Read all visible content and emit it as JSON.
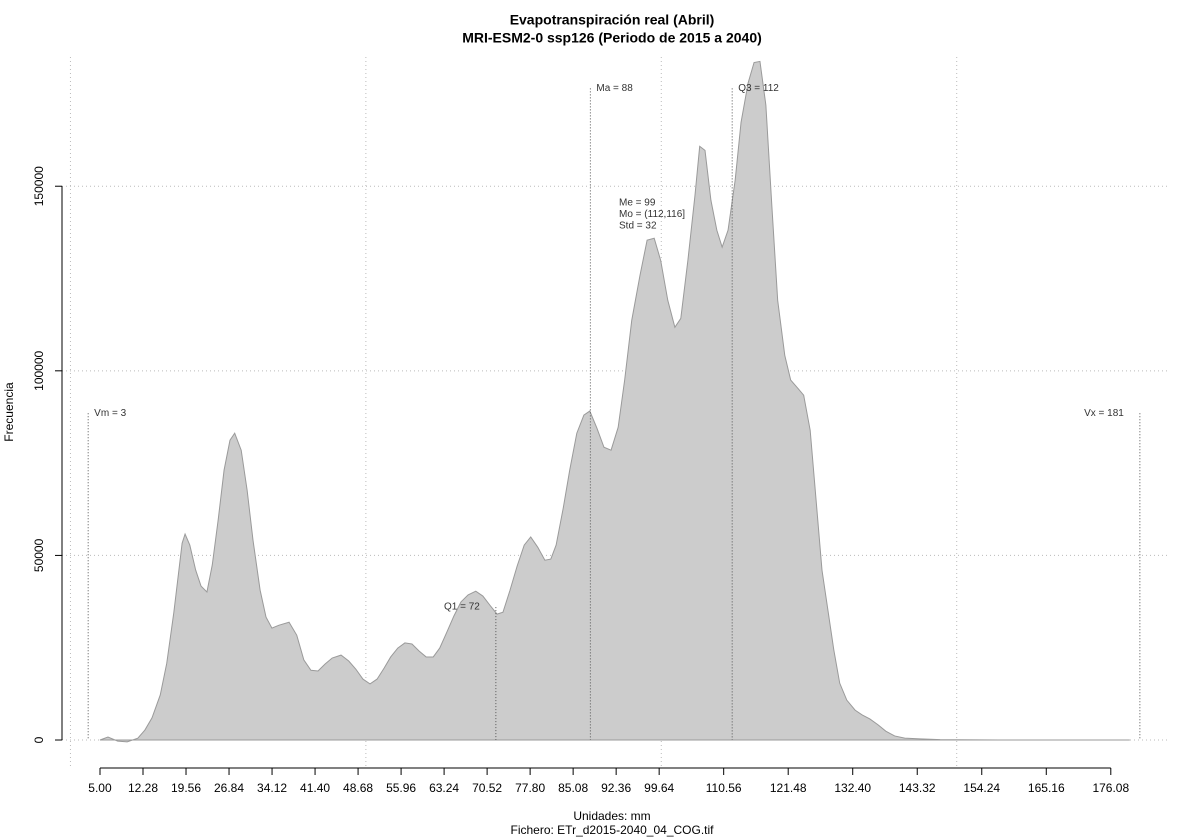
{
  "chart_data": {
    "type": "area",
    "title": "Evapotranspiración real (Abril)",
    "subtitle": "MRI-ESM2-0 ssp126 (Periodo de 2015 a 2040)",
    "x_label": "Unidades: mm",
    "caption": "Fichero: ETr_d2015-2040_04_COG.tif",
    "y_label": "Frecuencia",
    "color": "#cccccc",
    "line_color": "#9a9a9a",
    "x": [
      5,
      6.35,
      8.0,
      9.6,
      11.4,
      12.6,
      13.8,
      15.2,
      16.3,
      17.5,
      18.9,
      19.4,
      20.2,
      21.2,
      22.1,
      23.1,
      24.0,
      25.0,
      26.0,
      27.0,
      27.8,
      28.9,
      29.9,
      30.9,
      32.1,
      33.1,
      34.1,
      35.3,
      37.0,
      38.3,
      39.5,
      40.7,
      41.9,
      43.1,
      44.3,
      45.8,
      47.1,
      48.3,
      49.5,
      50.7,
      51.9,
      53.1,
      54.2,
      55.4,
      56.6,
      57.8,
      59.0,
      60.2,
      61.4,
      62.5,
      63.7,
      64.9,
      66.1,
      67.3,
      68.6,
      69.8,
      71.0,
      72.2,
      73.2,
      74.4,
      75.6,
      76.8,
      77.9,
      79.1,
      80.3,
      81.3,
      82.2,
      83.4,
      84.5,
      85.7,
      86.9,
      87.9,
      89.1,
      90.3,
      91.5,
      92.7,
      93.8,
      95.0,
      96.4,
      97.6,
      98.8,
      99.9,
      101.1,
      102.3,
      103.3,
      104.5,
      105.7,
      106.5,
      107.4,
      108.4,
      109.4,
      110.3,
      111.3,
      112.5,
      113.5,
      114.7,
      115.7,
      116.7,
      117.7,
      118.7,
      119.7,
      120.9,
      121.9,
      123.1,
      124.1,
      125.2,
      126.2,
      127.2,
      128.2,
      129.2,
      130.2,
      131.4,
      132.8,
      134.0,
      135.3,
      136.7,
      138.0,
      139.5,
      141.2,
      143.8,
      147.2,
      157.3,
      179.3
    ],
    "values": [
      0,
      800,
      -300,
      -500,
      500,
      2700,
      6000,
      12200,
      20800,
      34600,
      53300,
      55800,
      52800,
      46000,
      41700,
      40100,
      47400,
      59600,
      73100,
      81200,
      83100,
      78500,
      67700,
      54100,
      40600,
      33300,
      30300,
      31100,
      31900,
      28400,
      21700,
      18900,
      18700,
      20600,
      22200,
      23000,
      21400,
      19200,
      16500,
      15200,
      16500,
      19500,
      22500,
      24900,
      26300,
      26000,
      24100,
      22500,
      22500,
      24900,
      29200,
      33600,
      37400,
      39300,
      40300,
      39000,
      36500,
      34100,
      34600,
      40600,
      47100,
      52800,
      55000,
      52200,
      48700,
      49000,
      52800,
      62800,
      73100,
      83100,
      88000,
      89100,
      84500,
      79300,
      78500,
      84700,
      97500,
      113700,
      125900,
      135400,
      135900,
      129900,
      119100,
      111800,
      114200,
      129900,
      147500,
      160800,
      159700,
      146200,
      138100,
      133500,
      138100,
      151600,
      167300,
      178000,
      183500,
      183800,
      172000,
      145000,
      119100,
      104200,
      97500,
      95300,
      93400,
      83900,
      65000,
      46000,
      35200,
      24400,
      15400,
      10800,
      8100,
      6800,
      5700,
      4100,
      2400,
      1100,
      500,
      300,
      100,
      0,
      0
    ],
    "xlim": [
      -1.43,
      186.1
    ],
    "ylim": [
      -7580,
      185000
    ],
    "xticks": [
      {
        "value": 5,
        "label": "5.00"
      },
      12.28,
      19.56,
      26.84,
      34.12,
      {
        "value": 41.4,
        "label": "41.40"
      },
      48.68,
      55.96,
      63.24,
      70.52,
      {
        "value": 77.8,
        "label": "77.80"
      },
      85.08,
      92.36,
      99.64,
      110.56,
      121.48,
      {
        "value": 132.4,
        "label": "132.40"
      },
      143.32,
      154.24,
      165.16,
      176.08
    ],
    "yticks": [
      0,
      50000,
      100000,
      150000
    ],
    "xgrid": [
      0,
      50,
      100,
      150
    ],
    "grid": true,
    "markers": [
      {
        "label": "Vm = 3",
        "x": 3,
        "height": 88500,
        "align": "right"
      },
      {
        "label": "Q1 = 72",
        "x": 72,
        "height": 36000,
        "align": "left"
      },
      {
        "label": "Ma = 88",
        "x": 88,
        "height": 176500,
        "align": "right"
      },
      {
        "label": "Q3 = 112",
        "x": 112,
        "height": 176500,
        "align": "right"
      },
      {
        "label": "Vx = 181",
        "x": 181,
        "height": 88500,
        "align": "left"
      }
    ],
    "stats": [
      "Me = 99",
      "Mo = (112,116]",
      "Std = 32"
    ]
  }
}
